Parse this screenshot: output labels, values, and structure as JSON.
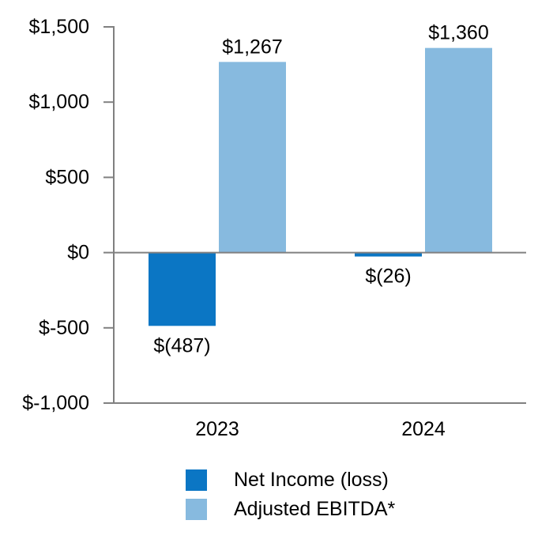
{
  "chart_data": {
    "type": "bar",
    "categories": [
      "2023",
      "2024"
    ],
    "series": [
      {
        "name": "Net Income (loss)",
        "color": "#0b76c4",
        "values": [
          -487,
          -26
        ],
        "data_labels": [
          "$(487)",
          "$(26)"
        ]
      },
      {
        "name": "Adjusted EBITDA*",
        "color": "#87badf",
        "values": [
          1267,
          1360
        ],
        "data_labels": [
          "$1,267",
          "$1,360"
        ]
      }
    ],
    "y_ticks": [
      {
        "value": 1500,
        "label": "$1,500"
      },
      {
        "value": 1000,
        "label": "$1,000"
      },
      {
        "value": 500,
        "label": "$500"
      },
      {
        "value": 0,
        "label": "$0"
      },
      {
        "value": -500,
        "label": "$-500"
      },
      {
        "value": -1000,
        "label": "$-1,000"
      }
    ],
    "ylim": [
      -1000,
      1500
    ],
    "grid": false,
    "legend_position": "bottom-center",
    "axis_color": "#808080",
    "text_color": "#000000",
    "background": "#ffffff"
  }
}
